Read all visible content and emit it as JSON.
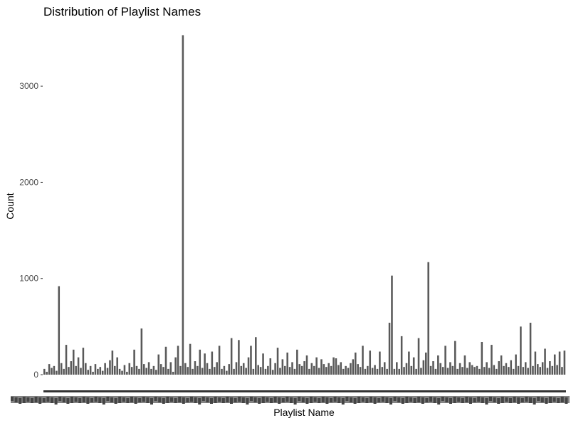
{
  "chart_data": {
    "type": "bar",
    "title": "Distribution of Playlist Names",
    "xlabel": "Playlist Name",
    "ylabel": "Count",
    "ylim": [
      0,
      3600
    ],
    "yticks": [
      0,
      1000,
      2000,
      3000
    ],
    "grid": false,
    "legend": "none",
    "bar_color": "#595959",
    "approx_category_count": 600,
    "notable_values": [
      920,
      480,
      3530,
      1030,
      1170,
      540,
      500
    ],
    "values": [
      60,
      30,
      110,
      70,
      90,
      40,
      920,
      120,
      60,
      310,
      80,
      140,
      260,
      90,
      180,
      70,
      280,
      120,
      50,
      90,
      30,
      110,
      60,
      80,
      40,
      120,
      70,
      150,
      250,
      90,
      180,
      60,
      40,
      100,
      30,
      120,
      80,
      260,
      90,
      60,
      480,
      110,
      70,
      130,
      60,
      90,
      50,
      210,
      110,
      80,
      290,
      60,
      130,
      30,
      180,
      300,
      90,
      3530,
      120,
      80,
      320,
      60,
      140,
      90,
      260,
      70,
      220,
      120,
      60,
      240,
      80,
      130,
      300,
      60,
      90,
      40,
      110,
      380,
      60,
      130,
      360,
      90,
      120,
      70,
      180,
      300,
      60,
      390,
      100,
      80,
      220,
      60,
      90,
      170,
      50,
      120,
      280,
      70,
      160,
      90,
      230,
      80,
      130,
      60,
      260,
      110,
      90,
      140,
      200,
      60,
      120,
      90,
      180,
      70,
      160,
      110,
      80,
      120,
      90,
      180,
      170,
      100,
      130,
      60,
      90,
      70,
      120,
      160,
      230,
      110,
      80,
      300,
      60,
      90,
      250,
      70,
      100,
      60,
      240,
      80,
      130,
      60,
      540,
      1030,
      60,
      130,
      60,
      400,
      80,
      120,
      240,
      90,
      180,
      60,
      380,
      70,
      150,
      230,
      1170,
      90,
      140,
      60,
      200,
      120,
      80,
      300,
      70,
      130,
      90,
      350,
      60,
      120,
      80,
      200,
      70,
      130,
      100,
      80,
      90,
      60,
      340,
      80,
      130,
      70,
      310,
      100,
      60,
      140,
      200,
      90,
      120,
      80,
      150,
      60,
      210,
      90,
      500,
      80,
      130,
      70,
      540,
      90,
      240,
      110,
      80,
      130,
      270,
      70,
      140,
      90,
      210,
      100,
      240,
      80,
      250
    ]
  }
}
